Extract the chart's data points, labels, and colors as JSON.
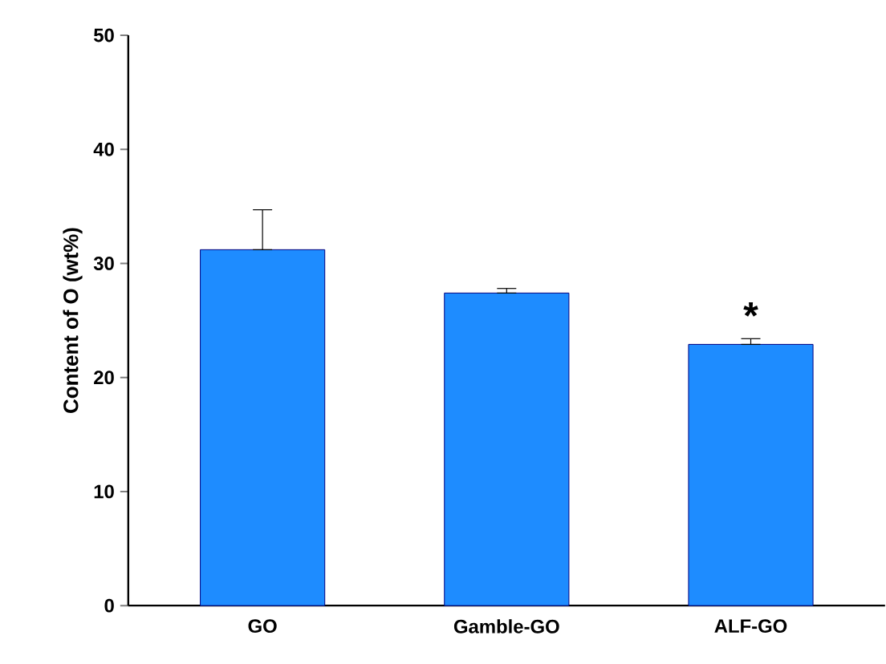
{
  "chart_data": {
    "type": "bar",
    "ylabel": "Content of O (wt%)",
    "categories": [
      "GO",
      "Gamble-GO",
      "ALF-GO"
    ],
    "values": [
      31.2,
      27.4,
      22.9
    ],
    "errors": [
      [
        31.2,
        34.7
      ],
      [
        27.4,
        27.8
      ],
      [
        22.9,
        23.4
      ]
    ],
    "color": "#1e8cff",
    "ylim": [
      0,
      50
    ],
    "yticks": [
      0,
      10,
      20,
      30,
      40,
      50
    ],
    "annotations": [
      "*"
    ]
  }
}
